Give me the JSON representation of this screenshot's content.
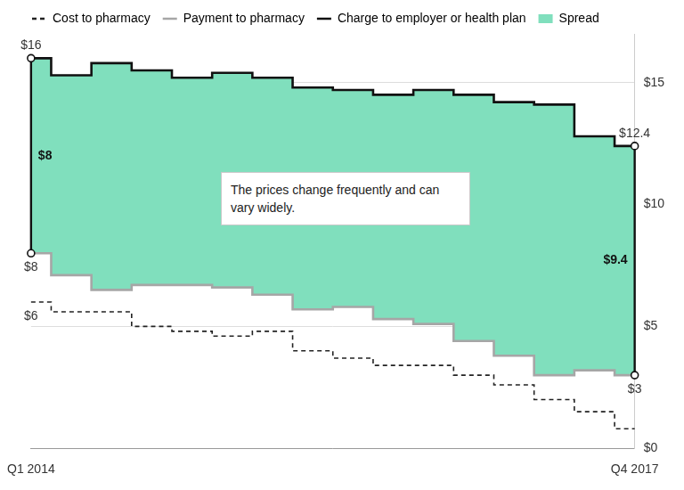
{
  "chart_data": {
    "type": "line",
    "categories": [
      "Q1 2014",
      null,
      null,
      null,
      null,
      null,
      null,
      null,
      null,
      null,
      null,
      null,
      null,
      null,
      null,
      "Q4 2017"
    ],
    "series": [
      {
        "name": "Cost to pharmacy",
        "color": "#222222",
        "line_style": "dashed",
        "values": [
          6,
          5.6,
          5.6,
          5.0,
          4.8,
          4.6,
          4.8,
          4.0,
          3.7,
          3.4,
          3.4,
          3.0,
          2.6,
          2.0,
          1.5,
          0.8
        ],
        "value_labels": [
          "$6",
          null,
          null,
          null,
          null,
          null,
          null,
          null,
          null,
          null,
          null,
          null,
          null,
          null,
          null,
          null
        ]
      },
      {
        "name": "Payment to pharmacy",
        "color": "#a6a6a6",
        "line_style": "solid",
        "marker": "circle",
        "values": [
          8,
          7.1,
          6.5,
          6.7,
          6.7,
          6.6,
          6.3,
          5.7,
          5.8,
          5.3,
          5.1,
          4.4,
          3.8,
          3.0,
          3.2,
          3
        ],
        "value_labels": [
          "$8",
          null,
          null,
          null,
          null,
          null,
          null,
          null,
          null,
          null,
          null,
          null,
          null,
          null,
          null,
          "$3"
        ]
      },
      {
        "name": "Charge to employer or health plan",
        "color": "#111111",
        "line_style": "solid",
        "marker": "circle",
        "values": [
          16,
          15.3,
          15.8,
          15.5,
          15.2,
          15.4,
          15.2,
          14.8,
          14.7,
          14.5,
          14.7,
          14.5,
          14.2,
          14.1,
          12.8,
          12.4
        ],
        "value_labels": [
          "$16",
          null,
          null,
          null,
          null,
          null,
          null,
          null,
          null,
          null,
          null,
          null,
          null,
          null,
          null,
          "$12.4"
        ]
      },
      {
        "name": "Spread",
        "type": "area",
        "stacked": true,
        "base": "Payment to pharmacy",
        "color": "#80dfbd",
        "values": [
          8,
          8.2,
          9.3,
          8.8,
          8.5,
          8.8,
          8.9,
          9.1,
          8.9,
          9.2,
          9.6,
          10.1,
          10.4,
          11.1,
          9.6,
          9.4
        ],
        "value_labels": [
          "$8",
          null,
          null,
          null,
          null,
          null,
          null,
          null,
          null,
          null,
          null,
          null,
          null,
          null,
          null,
          "$9.4"
        ]
      }
    ],
    "annotations": [
      {
        "text": "The prices change frequently and can vary widely."
      }
    ],
    "ylim": [
      0,
      17
    ],
    "yticks": [
      {
        "value": 0,
        "label": "$0"
      },
      {
        "value": 5,
        "label": "$5"
      },
      {
        "value": 10,
        "label": "$10"
      },
      {
        "value": 15,
        "label": "$15"
      }
    ],
    "grid": true,
    "legend": "top-left"
  }
}
